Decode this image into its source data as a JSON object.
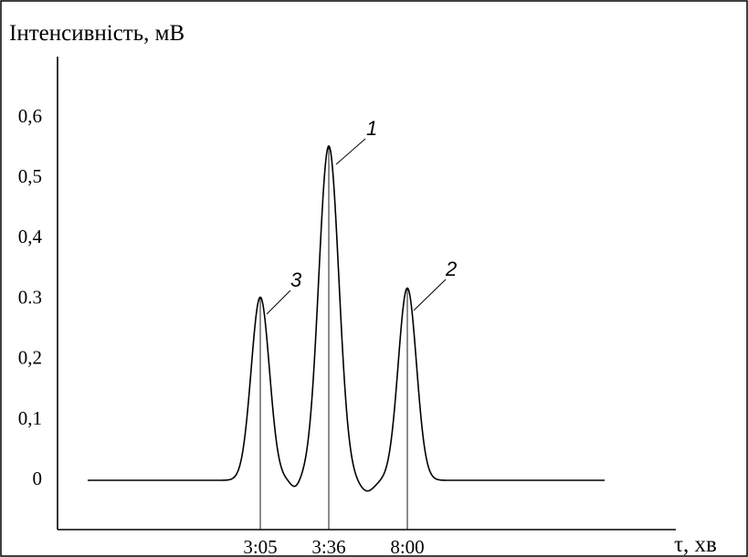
{
  "chart_data": {
    "type": "line",
    "ylabel": "Інтенсивність, мВ",
    "xlabel": "τ, хв",
    "y_ticks": [
      {
        "value": 0,
        "label": "0"
      },
      {
        "value": 0.1,
        "label": "0,1"
      },
      {
        "value": 0.2,
        "label": "0,2"
      },
      {
        "value": 0.3,
        "label": "0.3"
      },
      {
        "value": 0.4,
        "label": "0,4"
      },
      {
        "value": 0.5,
        "label": "0,5"
      },
      {
        "value": 0.6,
        "label": "0,6"
      }
    ],
    "ylim": [
      -0.08,
      0.75
    ],
    "peaks": [
      {
        "label": "3",
        "time": "3:05",
        "height": 0.3
      },
      {
        "label": "1",
        "time": "3:36",
        "height": 0.55
      },
      {
        "label": "2",
        "time": "8:00",
        "height": 0.315
      }
    ],
    "baseline": -0.003,
    "grid": false
  }
}
